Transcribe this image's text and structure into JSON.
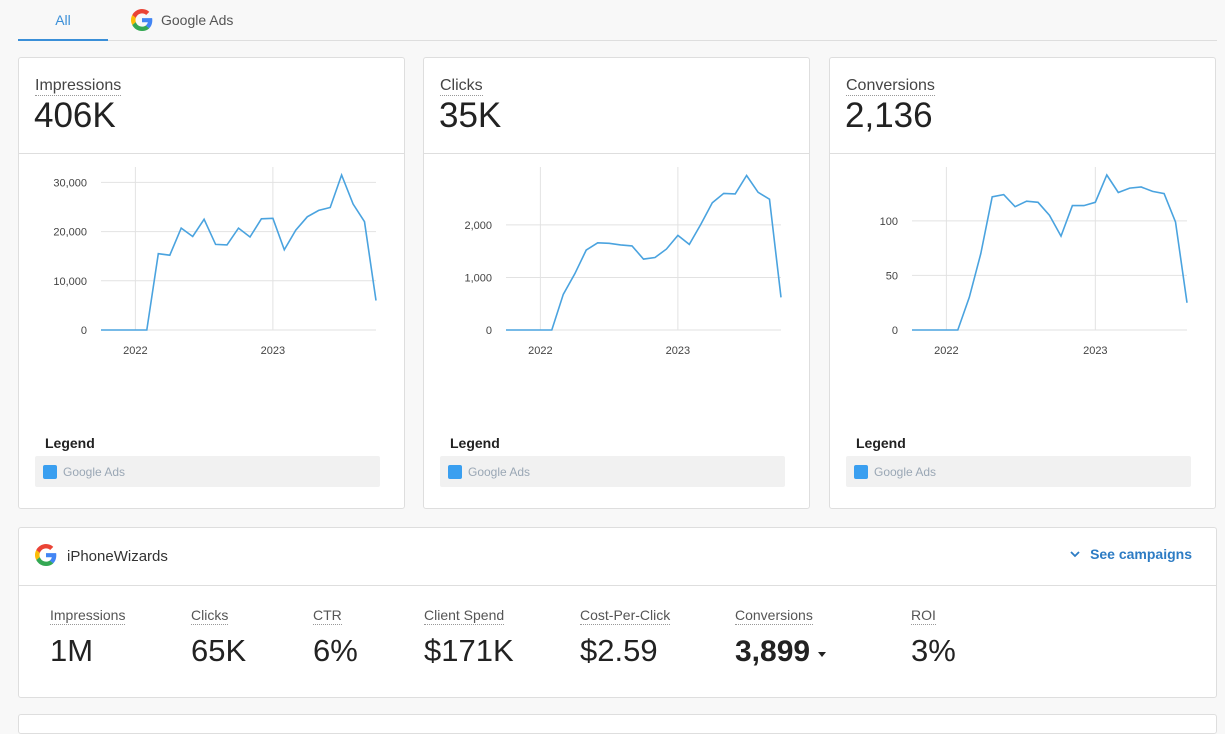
{
  "tabs": [
    {
      "label": "All",
      "active": true
    },
    {
      "label": "Google Ads",
      "icon": "google-logo-icon"
    }
  ],
  "cards": [
    {
      "title": "Impressions",
      "value": "406K",
      "legend_title": "Legend",
      "legend_item": "Google Ads"
    },
    {
      "title": "Clicks",
      "value": "35K",
      "legend_title": "Legend",
      "legend_item": "Google Ads"
    },
    {
      "title": "Conversions",
      "value": "2,136",
      "legend_title": "Legend",
      "legend_item": "Google Ads"
    }
  ],
  "chart_data": [
    {
      "type": "line",
      "title": "Impressions",
      "series": [
        {
          "name": "Google Ads",
          "color": "#4aa3df",
          "values": [
            0,
            0,
            0,
            0,
            0,
            15500,
            15200,
            20700,
            19000,
            22500,
            17400,
            17300,
            20700,
            18900,
            22600,
            22700,
            16300,
            20300,
            23000,
            24300,
            24900,
            31500,
            25600,
            22000,
            6000
          ]
        }
      ],
      "x_ticks": [
        "2022",
        "2023"
      ],
      "x_tick_index": [
        3,
        15
      ],
      "y_ticks": [
        "0",
        "10,000",
        "20,000",
        "30,000"
      ],
      "y_tick_values": [
        0,
        10000,
        20000,
        30000
      ],
      "ylim": [
        0,
        31500
      ],
      "grid": true
    },
    {
      "type": "line",
      "title": "Clicks",
      "series": [
        {
          "name": "Google Ads",
          "color": "#4aa3df",
          "values": [
            0,
            0,
            0,
            0,
            0,
            680,
            1070,
            1520,
            1660,
            1650,
            1620,
            1600,
            1350,
            1380,
            1540,
            1800,
            1630,
            2010,
            2420,
            2600,
            2590,
            2940,
            2620,
            2490,
            620
          ]
        }
      ],
      "x_ticks": [
        "2022",
        "2023"
      ],
      "x_tick_index": [
        3,
        15
      ],
      "y_ticks": [
        "0",
        "1,000",
        "2,000"
      ],
      "y_tick_values": [
        0,
        1000,
        2000
      ],
      "ylim": [
        0,
        2950
      ],
      "grid": true
    },
    {
      "type": "line",
      "title": "Conversions",
      "series": [
        {
          "name": "Google Ads",
          "color": "#4aa3df",
          "values": [
            0,
            0,
            0,
            0,
            0,
            30,
            70,
            122,
            124,
            113,
            118,
            117,
            105,
            86,
            114,
            114,
            117,
            142,
            126,
            130,
            131,
            127,
            125,
            99,
            25
          ]
        }
      ],
      "x_ticks": [
        "2022",
        "2023"
      ],
      "x_tick_index": [
        3,
        16
      ],
      "y_ticks": [
        "0",
        "50",
        "100"
      ],
      "y_tick_values": [
        0,
        50,
        100
      ],
      "ylim": [
        0,
        142
      ],
      "grid": true
    }
  ],
  "account": {
    "name": "iPhoneWizards",
    "icon": "google-logo-icon",
    "see_campaigns": "See campaigns",
    "metrics": [
      {
        "label": "Impressions",
        "value": "1M"
      },
      {
        "label": "Clicks",
        "value": "65K"
      },
      {
        "label": "CTR",
        "value": "6%"
      },
      {
        "label": "Client Spend",
        "value": "$171K"
      },
      {
        "label": "Cost-Per-Click",
        "value": "$2.59"
      },
      {
        "label": "Conversions",
        "value": "3,899"
      },
      {
        "label": "ROI",
        "value": "3%"
      }
    ]
  }
}
